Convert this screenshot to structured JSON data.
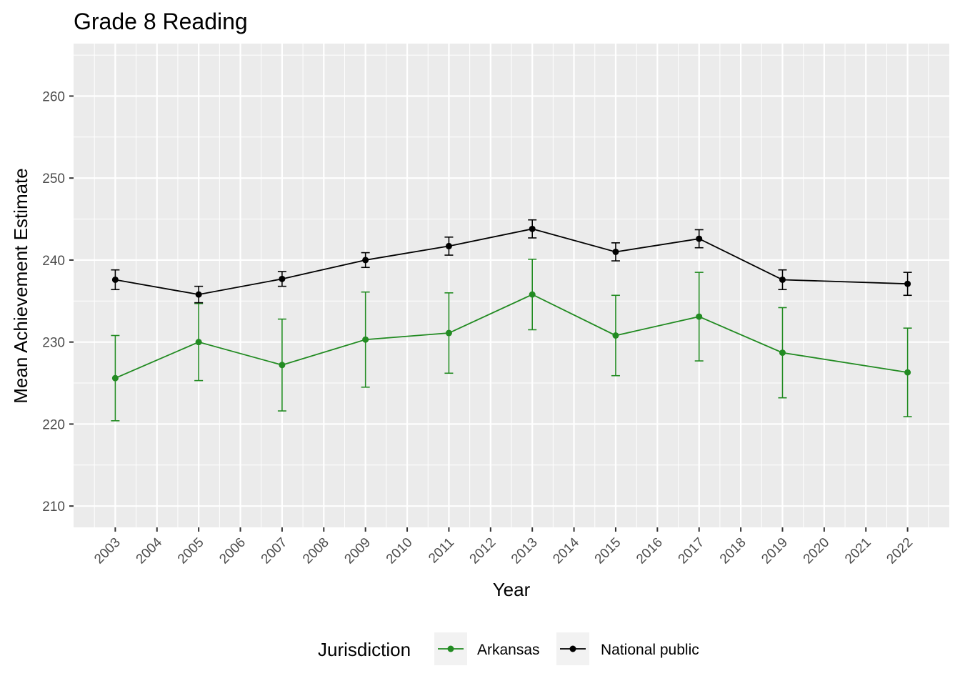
{
  "chart_data": {
    "type": "line",
    "title": "Grade 8 Reading",
    "xlabel": "Year",
    "ylabel": "Mean Achievement Estimate",
    "x_ticks": [
      2003,
      2004,
      2005,
      2006,
      2007,
      2008,
      2009,
      2010,
      2011,
      2012,
      2013,
      2014,
      2015,
      2016,
      2017,
      2018,
      2019,
      2020,
      2021,
      2022
    ],
    "xlim": [
      2002,
      2023
    ],
    "y_ticks": [
      210,
      220,
      230,
      240,
      250,
      260
    ],
    "ylim": [
      207.4,
      266.4
    ],
    "grid": true,
    "error_bars": true,
    "legend": {
      "title": "Jurisdiction",
      "placement": "bottom"
    },
    "series": [
      {
        "name": "Arkansas",
        "color": "#228b22",
        "x": [
          2003,
          2005,
          2007,
          2009,
          2011,
          2013,
          2015,
          2017,
          2019,
          2022
        ],
        "values": [
          225.6,
          230.0,
          227.2,
          230.3,
          231.1,
          235.8,
          230.8,
          233.1,
          228.7,
          226.3
        ],
        "lower": [
          220.4,
          225.3,
          221.6,
          224.5,
          226.2,
          231.5,
          225.9,
          227.7,
          223.2,
          220.9
        ],
        "upper": [
          230.8,
          234.7,
          232.8,
          236.1,
          236.0,
          240.1,
          235.7,
          238.5,
          234.2,
          231.7
        ]
      },
      {
        "name": "National public",
        "color": "#000000",
        "x": [
          2003,
          2005,
          2007,
          2009,
          2011,
          2013,
          2015,
          2017,
          2019,
          2022
        ],
        "values": [
          237.6,
          235.8,
          237.7,
          240.0,
          241.7,
          243.8,
          241.0,
          242.6,
          237.6,
          237.1
        ],
        "lower": [
          236.4,
          234.8,
          236.8,
          239.1,
          240.6,
          242.7,
          239.9,
          241.5,
          236.4,
          235.7
        ],
        "upper": [
          238.8,
          236.8,
          238.6,
          240.9,
          242.8,
          244.9,
          242.1,
          243.7,
          238.8,
          238.5
        ]
      }
    ]
  }
}
